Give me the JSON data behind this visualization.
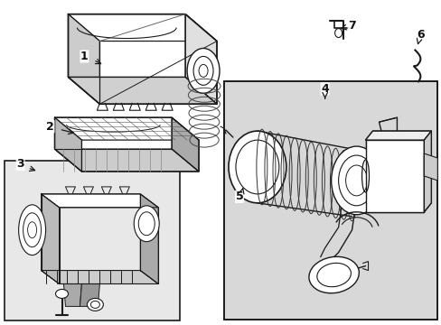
{
  "bg_color": "#ffffff",
  "inset_bg": "#e8e8e8",
  "panel_bg": "#d8d8d8",
  "lc": "#1a1a1a",
  "lw": 0.7,
  "fig_w": 4.89,
  "fig_h": 3.6,
  "dpi": 100
}
